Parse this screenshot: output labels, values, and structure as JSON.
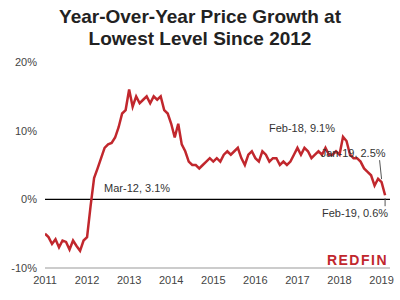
{
  "chart_data": {
    "type": "line",
    "title": "Year-Over-Year Price Growth at\nLowest Level Since 2012",
    "logo": "REDFIN",
    "color": "#c1272d",
    "grid": false,
    "x": [
      2011,
      2011.0833,
      2011.1667,
      2011.25,
      2011.3333,
      2011.4167,
      2011.5,
      2011.5833,
      2011.6667,
      2011.75,
      2011.8333,
      2011.9167,
      2012,
      2012.0833,
      2012.1667,
      2012.25,
      2012.3333,
      2012.4167,
      2012.5,
      2012.5833,
      2012.6667,
      2012.75,
      2012.8333,
      2012.9167,
      2013,
      2013.0833,
      2013.1667,
      2013.25,
      2013.3333,
      2013.4167,
      2013.5,
      2013.5833,
      2013.6667,
      2013.75,
      2013.8333,
      2013.9167,
      2014,
      2014.0833,
      2014.1667,
      2014.25,
      2014.3333,
      2014.4167,
      2014.5,
      2014.5833,
      2014.6667,
      2014.75,
      2014.8333,
      2014.9167,
      2015,
      2015.0833,
      2015.1667,
      2015.25,
      2015.3333,
      2015.4167,
      2015.5,
      2015.5833,
      2015.6667,
      2015.75,
      2015.8333,
      2015.9167,
      2016,
      2016.0833,
      2016.1667,
      2016.25,
      2016.3333,
      2016.4167,
      2016.5,
      2016.5833,
      2016.6667,
      2016.75,
      2016.8333,
      2016.9167,
      2017,
      2017.0833,
      2017.1667,
      2017.25,
      2017.3333,
      2017.4167,
      2017.5,
      2017.5833,
      2017.6667,
      2017.75,
      2017.8333,
      2017.9167,
      2018,
      2018.0833,
      2018.1667,
      2018.25,
      2018.3333,
      2018.4167,
      2018.5,
      2018.5833,
      2018.6667,
      2018.75,
      2018.8333,
      2018.9167,
      2019,
      2019.0833
    ],
    "values": [
      -5,
      -5.5,
      -6.5,
      -5.8,
      -7,
      -6,
      -6.2,
      -7.3,
      -6,
      -6.8,
      -7.5,
      -6,
      -5.5,
      -1,
      3.1,
      4.5,
      6,
      7.5,
      8,
      8.2,
      9,
      10.5,
      12.5,
      13,
      16,
      13.5,
      15,
      14,
      14.5,
      15,
      14,
      15,
      14.5,
      15,
      13,
      12.5,
      11,
      9,
      11,
      8,
      7,
      5.5,
      5,
      5,
      4.5,
      5,
      5.5,
      6,
      5.5,
      6,
      5.5,
      6.5,
      7,
      6.5,
      7,
      7.5,
      6,
      5,
      6.5,
      7,
      6,
      5.5,
      7,
      6.5,
      5.5,
      6,
      6,
      5,
      5.5,
      5,
      5.5,
      6.5,
      7.5,
      6.5,
      7.5,
      7,
      6,
      6.5,
      7,
      6.5,
      7.5,
      6.5,
      6.5,
      7,
      6.5,
      9.1,
      8.5,
      6.5,
      6,
      6,
      5.5,
      4.5,
      4,
      3.5,
      2,
      3,
      2.5,
      0.6
    ],
    "xlim": [
      2011,
      2019.2
    ],
    "xticks": [
      2011,
      2012,
      2013,
      2014,
      2015,
      2016,
      2017,
      2018,
      2019
    ],
    "ylim": [
      -10,
      20
    ],
    "yticks": [
      {
        "value": -10,
        "label": "-10%"
      },
      {
        "value": 0,
        "label": "0%"
      },
      {
        "value": 10,
        "label": "10%"
      },
      {
        "value": 20,
        "label": "20%"
      }
    ],
    "annotations": [
      {
        "label": "Mar-12, 3.1%",
        "x": 2012.1667
      },
      {
        "label": "Feb-18, 9.1%",
        "x": 2018.0833
      },
      {
        "label": "Jan-19, 2.5%",
        "x": 2019
      },
      {
        "label": "Feb-19, 0.6%",
        "x": 2019.0833
      }
    ]
  }
}
